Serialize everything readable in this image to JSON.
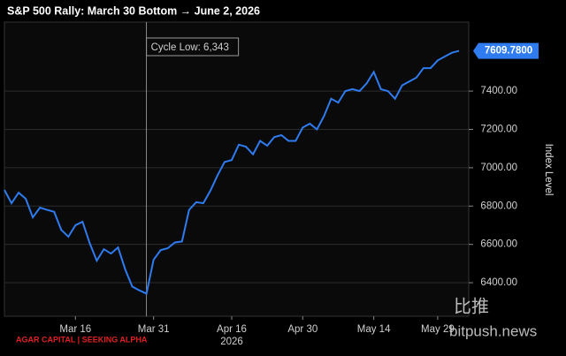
{
  "chart_data": {
    "type": "line",
    "title": "S&P 500 Rally: March 30 Bottom → June 2, 2026",
    "y_axis_label": "Index Level",
    "year_label": "2026",
    "annotation": "Cycle Low: 6,343",
    "source": "AGAR CAPITAL | SEEKING ALPHA",
    "watermark": [
      "比推",
      "bitpush.news"
    ],
    "categories": [
      null,
      null,
      null,
      null,
      null,
      null,
      null,
      null,
      null,
      null,
      "Mar 16",
      null,
      null,
      null,
      null,
      null,
      null,
      null,
      null,
      null,
      null,
      "Mar 31",
      null,
      null,
      null,
      null,
      null,
      null,
      null,
      null,
      null,
      null,
      "Apr 16",
      null,
      null,
      null,
      null,
      null,
      null,
      null,
      null,
      null,
      "Apr 30",
      null,
      null,
      null,
      null,
      null,
      null,
      null,
      null,
      null,
      "May 14",
      null,
      null,
      null,
      null,
      null,
      null,
      null,
      null,
      "May 29",
      null,
      null,
      null
    ],
    "series": [
      {
        "color": "#2f7bf0",
        "values": [
          6884,
          6815,
          6870,
          6838,
          6741,
          6792,
          6780,
          6770,
          6676,
          6640,
          6700,
          6718,
          6607,
          6515,
          6575,
          6552,
          6584,
          6470,
          6380,
          6360,
          6343,
          6520,
          6570,
          6580,
          6610,
          6615,
          6780,
          6820,
          6815,
          6880,
          6960,
          7030,
          7040,
          7120,
          7110,
          7070,
          7140,
          7115,
          7160,
          7170,
          7140,
          7140,
          7210,
          7230,
          7200,
          7270,
          7360,
          7340,
          7400,
          7410,
          7400,
          7440,
          7500,
          7410,
          7400,
          7360,
          7430,
          7450,
          7470,
          7520,
          7520,
          7560,
          7580,
          7600,
          7609.78
        ],
        "value_labels": [
          null,
          null,
          null,
          null,
          null,
          null,
          null,
          null,
          null,
          null,
          null,
          null,
          null,
          null,
          null,
          null,
          null,
          null,
          null,
          null,
          null,
          null,
          null,
          null,
          null,
          null,
          null,
          null,
          null,
          null,
          null,
          null,
          null,
          null,
          null,
          null,
          null,
          null,
          null,
          null,
          null,
          null,
          null,
          null,
          null,
          null,
          null,
          null,
          null,
          null,
          null,
          null,
          null,
          null,
          null,
          null,
          null,
          null,
          null,
          null,
          null,
          null,
          null,
          null,
          "7609.7800"
        ]
      }
    ],
    "ylim": [
      6225,
      7760
    ],
    "yticks": [
      {
        "value": 6400,
        "label": "6400.00"
      },
      {
        "value": 6600,
        "label": "6600.00"
      },
      {
        "value": 6800,
        "label": "6800.00"
      },
      {
        "value": 7000,
        "label": "7000.00"
      },
      {
        "value": 7200,
        "label": "7200.00"
      },
      {
        "value": 7400,
        "label": "7400.00"
      }
    ],
    "grid": true
  }
}
